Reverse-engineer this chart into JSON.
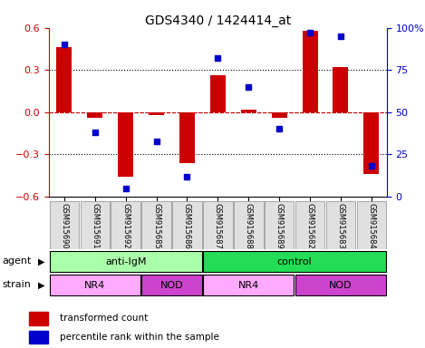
{
  "title": "GDS4340 / 1424414_at",
  "samples": [
    "GSM915690",
    "GSM915691",
    "GSM915692",
    "GSM915685",
    "GSM915686",
    "GSM915687",
    "GSM915688",
    "GSM915689",
    "GSM915682",
    "GSM915683",
    "GSM915684"
  ],
  "bar_values": [
    0.46,
    -0.04,
    -0.46,
    -0.02,
    -0.36,
    0.26,
    0.02,
    -0.04,
    0.58,
    0.32,
    -0.44
  ],
  "dot_values": [
    90,
    38,
    5,
    33,
    12,
    82,
    65,
    40,
    97,
    95,
    18
  ],
  "bar_color": "#cc0000",
  "dot_color": "#0000cc",
  "ylim_left": [
    -0.6,
    0.6
  ],
  "ylim_right": [
    0,
    100
  ],
  "yticks_left": [
    -0.6,
    -0.3,
    0.0,
    0.3,
    0.6
  ],
  "yticks_right": [
    0,
    25,
    50,
    75,
    100
  ],
  "ytick_labels_right": [
    "0",
    "25",
    "50",
    "75",
    "100%"
  ],
  "hline_y": 0.0,
  "dotted_lines": [
    -0.3,
    0.3
  ],
  "agent_labels": [
    {
      "label": "anti-IgM",
      "start": 0,
      "end": 5,
      "color": "#aaffaa"
    },
    {
      "label": "control",
      "start": 5,
      "end": 11,
      "color": "#22dd55"
    }
  ],
  "strain_labels": [
    {
      "label": "NR4",
      "start": 0,
      "end": 3,
      "color": "#ffaaff"
    },
    {
      "label": "NOD",
      "start": 3,
      "end": 5,
      "color": "#cc44cc"
    },
    {
      "label": "NR4",
      "start": 5,
      "end": 8,
      "color": "#ffaaff"
    },
    {
      "label": "NOD",
      "start": 8,
      "end": 11,
      "color": "#cc44cc"
    }
  ],
  "legend_bar_label": "transformed count",
  "legend_dot_label": "percentile rank within the sample",
  "bar_width": 0.5
}
